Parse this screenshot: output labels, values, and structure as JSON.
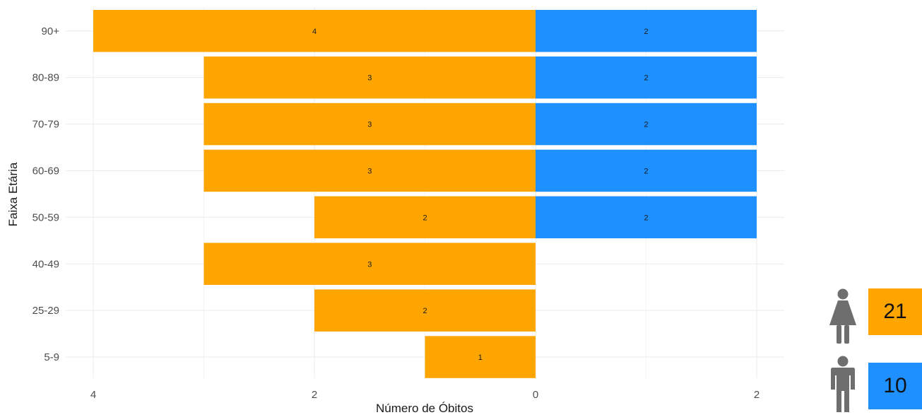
{
  "chart_data": {
    "type": "bar",
    "orientation": "horizontal-population-pyramid",
    "xlabel": "Número de Óbitos",
    "ylabel": "Faixa Etária",
    "categories": [
      "90+",
      "80-89",
      "70-79",
      "60-69",
      "50-59",
      "40-49",
      "25-29",
      "5-9"
    ],
    "series": [
      {
        "color": "#FFA500",
        "side": "left",
        "values": [
          4,
          3,
          3,
          3,
          2,
          3,
          2,
          1
        ]
      },
      {
        "color": "#1E90FF",
        "side": "right",
        "values": [
          2,
          2,
          2,
          2,
          2,
          0,
          0,
          0
        ]
      }
    ],
    "xlim": [
      -4.4,
      2.2
    ],
    "x_ticks": [
      {
        "value": -4,
        "label": "4"
      },
      {
        "value": -2,
        "label": "2"
      },
      {
        "value": 0,
        "label": "0"
      },
      {
        "value": 2,
        "label": "2"
      }
    ],
    "grid": true
  },
  "legend": [
    {
      "icon": "female-person-icon",
      "value": "21",
      "color": "#FFA500"
    },
    {
      "icon": "male-person-icon",
      "value": "10",
      "color": "#1E90FF"
    }
  ]
}
